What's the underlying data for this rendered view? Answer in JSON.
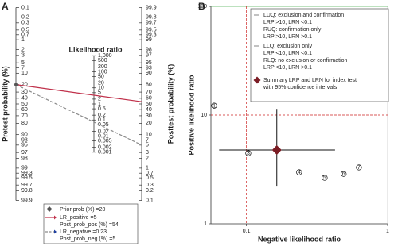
{
  "chart_data": [
    {
      "type": "nomogram",
      "panel": "A",
      "ylabel": "Pretest probability (%)",
      "y2label": "Posttest probability (%)",
      "lr_title": "Likelihood ratio",
      "pretest_ticks": [
        0.1,
        0.2,
        0.3,
        0.5,
        0.7,
        1,
        2,
        3,
        5,
        7,
        10,
        20,
        30,
        40,
        50,
        60,
        70,
        80,
        90,
        93,
        95,
        97,
        98,
        99,
        99.3,
        99.5,
        99.7,
        99.8,
        99.9
      ],
      "posttest_ticks": [
        99.9,
        99.8,
        99.7,
        99.5,
        99.3,
        99,
        98,
        97,
        95,
        93,
        90,
        80,
        70,
        60,
        50,
        40,
        30,
        20,
        10,
        7,
        5,
        3,
        2,
        1,
        0.7,
        0.5,
        0.3,
        0.2,
        0.1
      ],
      "lr_ticks": [
        {
          "value": 1000,
          "label": "1,000"
        },
        500,
        200,
        100,
        50,
        20,
        10,
        5,
        2,
        1,
        0.5,
        0.2,
        0.1,
        0.05,
        0.02,
        0.01,
        0.005,
        0.002,
        0.001
      ],
      "prior": {
        "label": "Prior prob (%) =",
        "value": 20,
        "color": "#555555"
      },
      "positive": {
        "label": "LR_positive =",
        "value": 5,
        "post_label": "Post_prob_pos (%) =",
        "post_value": 54,
        "color": "#c0304a"
      },
      "negative": {
        "label": "LR_negative =",
        "value": 0.23,
        "post_label": "Post_prob_neg (%) =",
        "post_value": 5,
        "color": "#8c8c8c",
        "marker_color": "#1f3f9f"
      }
    },
    {
      "type": "scatter",
      "panel": "B",
      "xlabel": "Negative likelihood ratio",
      "ylabel": "Positive likelihood ratio",
      "xlim": [
        0.056,
        1
      ],
      "ylim": [
        1,
        100
      ],
      "xticks": [
        0.1,
        1
      ],
      "yticks": [
        1,
        10,
        100
      ],
      "log_x": true,
      "log_y": true,
      "x": [
        0.059,
        0.154,
        0.103,
        0.236,
        0.358,
        0.488,
        0.626
      ],
      "y": [
        12.2,
        22.8,
        4.46,
        2.98,
        2.65,
        2.88,
        3.3
      ],
      "point_labels": [
        "1",
        "2",
        "3",
        "4",
        "5",
        "6",
        "7"
      ],
      "ref_x": 0.1,
      "ref_y": 10,
      "ref_color": "#cc2222",
      "summary": {
        "x": 0.164,
        "y": 4.77,
        "x_ci": [
          0.064,
          0.424
        ],
        "y_ci": [
          2.2,
          11.4
        ],
        "color": "#7b1c24"
      },
      "legend": [
        [
          "LUQ: exclusion and confirmation",
          "LRP >10, LRN <0.1",
          "RUQ: confirmation only",
          "LRP >10, LRN >0.1"
        ],
        [
          "LLQ: exclusion only",
          "LRP <10, LRN <0.1",
          "RLQ: no exclusion or confirmation",
          "LRP <10, LRN >0.1"
        ],
        [
          "Summary LRP and LRN for index test",
          "with 95% confidence intervals"
        ]
      ]
    }
  ]
}
